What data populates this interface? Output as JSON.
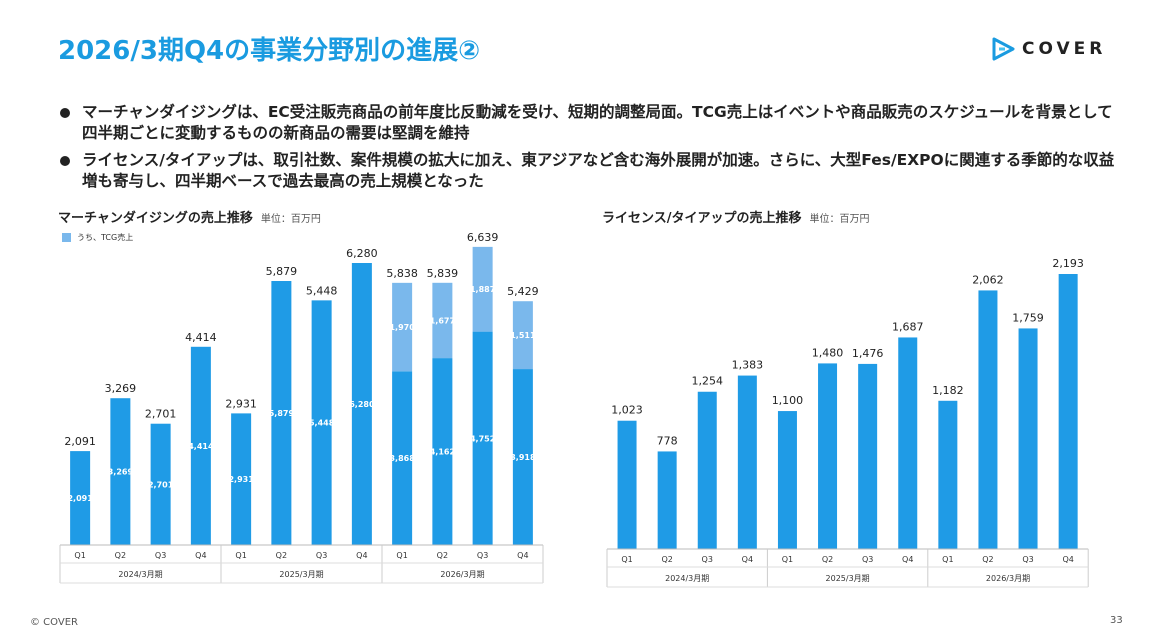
{
  "header": {
    "title": "2026/3期Q4の事業分野別の進展②",
    "logo_text": "COVER"
  },
  "bullets": [
    "マーチャンダイジングは、EC受注販売商品の前年度比反動減を受け、短期的調整局面。TCG売上はイベントや商品販売のスケジュールを背景として四半期ごとに変動するものの新商品の需要は堅調を維持",
    "ライセンス/タイアップは、取引社数、案件規模の拡大に加え、東アジアなど含む海外展開が加速。さらに、大型Fes/EXPOに関連する季節的な収益増も寄与し、四半期ベースで過去最高の売上規模となった"
  ],
  "footer": {
    "copyright": "© COVER",
    "page": "33"
  },
  "colors": {
    "bar": "#1f9be6",
    "tcg": "#7ab8ec",
    "accent": "#1a9be0"
  },
  "chart_data": [
    {
      "type": "bar",
      "title": "マーチャンダイジングの売上推移",
      "unit": "単位：百万円",
      "legend": "うち、TCG売上",
      "categories": [
        "Q1",
        "Q2",
        "Q3",
        "Q4",
        "Q1",
        "Q2",
        "Q3",
        "Q4",
        "Q1",
        "Q2",
        "Q3",
        "Q4"
      ],
      "groups": [
        {
          "label": "2024/3月期",
          "count": 4
        },
        {
          "label": "2025/3月期",
          "count": 4
        },
        {
          "label": "2026/3月期",
          "count": 4
        }
      ],
      "totals": [
        2091,
        3269,
        2701,
        4414,
        2931,
        5879,
        5448,
        6280,
        5838,
        5839,
        6639,
        5429
      ],
      "total_labels": [
        "2,091",
        "3,269",
        "2,701",
        "4,414",
        "2,931",
        "5,879",
        "5,448",
        "6,280",
        "5,838",
        "5,839",
        "6,639",
        "5,429"
      ],
      "series": [
        {
          "values": [
            2091,
            3269,
            2701,
            4414,
            2931,
            5879,
            5448,
            6280,
            3868,
            4162,
            4752,
            3918
          ],
          "labels": [
            "2,091",
            "3,269",
            "2,701",
            "4,414",
            "2,931",
            "5,879",
            "5,448",
            "6,280",
            "3,868",
            "4,162",
            "4,752",
            "3,918"
          ]
        },
        {
          "name": "うち、TCG売上",
          "values": [
            0,
            0,
            0,
            0,
            0,
            0,
            0,
            0,
            1970,
            1677,
            1887,
            1511
          ],
          "labels": [
            "",
            "",
            "",
            "",
            "",
            "",
            "",
            "",
            "1,970",
            "1,677",
            "1,887",
            "1,511"
          ]
        }
      ],
      "ylim": [
        0,
        7000
      ]
    },
    {
      "type": "bar",
      "title": "ライセンス/タイアップの売上推移",
      "unit": "単位：百万円",
      "categories": [
        "Q1",
        "Q2",
        "Q3",
        "Q4",
        "Q1",
        "Q2",
        "Q3",
        "Q4",
        "Q1",
        "Q2",
        "Q3",
        "Q4"
      ],
      "groups": [
        {
          "label": "2024/3月期",
          "count": 4
        },
        {
          "label": "2025/3月期",
          "count": 4
        },
        {
          "label": "2026/3月期",
          "count": 4
        }
      ],
      "values": [
        1023,
        778,
        1254,
        1383,
        1100,
        1480,
        1476,
        1687,
        1182,
        2062,
        1759,
        2193
      ],
      "labels": [
        "1,023",
        "778",
        "1,254",
        "1,383",
        "1,100",
        "1,480",
        "1,476",
        "1,687",
        "1,182",
        "2,062",
        "1,759",
        "2,193"
      ],
      "ylim": [
        0,
        2300
      ]
    }
  ]
}
